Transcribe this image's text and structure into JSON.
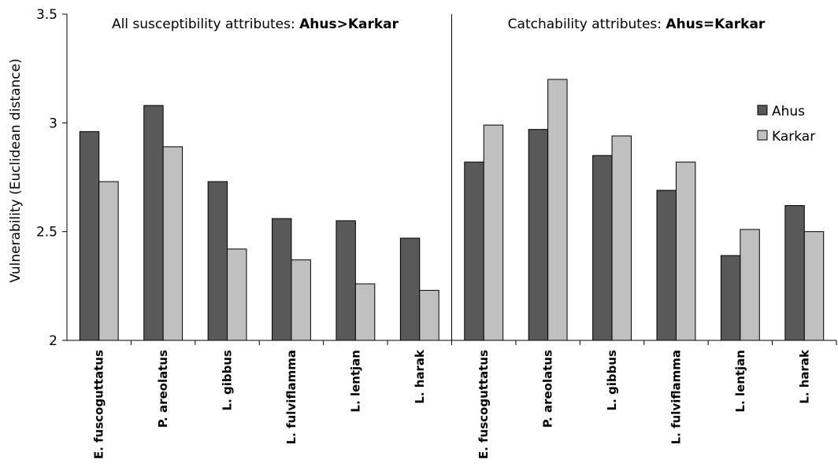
{
  "chart_data": {
    "type": "bar",
    "ylabel": "Vulnerability (Euclidean distance)",
    "ylim": [
      2,
      3.5
    ],
    "yticks": [
      "2",
      "2.5",
      "3",
      "3.5"
    ],
    "legend_position": "top-right",
    "panels": [
      {
        "title_prefix": "All susceptibility attributes: ",
        "title_bold": "Ahus>Karkar",
        "categories": [
          "E. fuscoguttatus",
          "P. areolatus",
          "L. gibbus",
          "L. fulviflamma",
          "L. lentjan",
          "L. harak"
        ],
        "series": [
          {
            "name": "Ahus",
            "values": [
              2.96,
              3.08,
              2.73,
              2.56,
              2.55,
              2.47
            ]
          },
          {
            "name": "Karkar",
            "values": [
              2.73,
              2.89,
              2.42,
              2.37,
              2.26,
              2.23
            ]
          }
        ]
      },
      {
        "title_prefix": "Catchability attributes: ",
        "title_bold": "Ahus=Karkar",
        "categories": [
          "E. fuscoguttatus",
          "P. areolatus",
          "L. gibbus",
          "L. fulviflamma",
          "L. lentjan",
          "L. harak"
        ],
        "series": [
          {
            "name": "Ahus",
            "values": [
              2.82,
              2.97,
              2.85,
              2.69,
              2.39,
              2.62
            ]
          },
          {
            "name": "Karkar",
            "values": [
              2.99,
              3.2,
              2.94,
              2.82,
              2.51,
              2.5
            ]
          }
        ]
      }
    ],
    "colors": {
      "Ahus": "#595959",
      "Karkar": "#c0c0c0"
    }
  }
}
